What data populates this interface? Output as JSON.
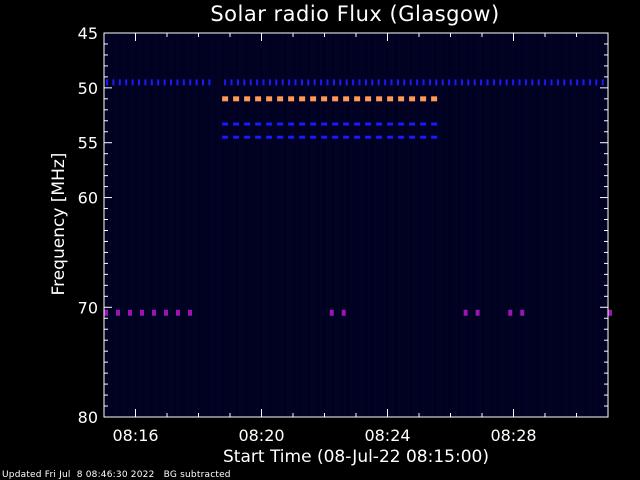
{
  "footer": "Updated Fri Jul  8 08:46:30 2022   BG subtracted",
  "chart_data": {
    "type": "heatmap",
    "title": "Solar radio Flux (Glasgow)",
    "xlabel": "Start Time (08-Jul-22 08:15:00)",
    "ylabel": "Frequency [MHz]",
    "xlim": [
      "08:15:00",
      "08:31:00"
    ],
    "ylim": [
      45,
      80
    ],
    "y_scale": "inverted",
    "x_ticks": [
      "08:16",
      "08:20",
      "08:24",
      "08:28"
    ],
    "y_ticks": [
      45,
      50,
      55,
      60,
      70,
      80
    ],
    "colors": {
      "background": "#000020",
      "low": "#1a1aff",
      "mid": "#9b14b4",
      "high": "#ff9955"
    },
    "features": [
      {
        "name": "dotted band",
        "frequency": 49.5,
        "intensity": "low",
        "segments": [
          [
            "08:15:00",
            "08:18:30"
          ],
          [
            "08:18:45",
            "08:31:00"
          ]
        ]
      },
      {
        "name": "dashed band",
        "frequency": 51.0,
        "intensity": "high",
        "segments": [
          [
            "08:18:45",
            "08:25:45"
          ]
        ]
      },
      {
        "name": "dashed band",
        "frequency": 53.3,
        "intensity": "low",
        "segments": [
          [
            "08:18:45",
            "08:25:45"
          ]
        ]
      },
      {
        "name": "dashed band",
        "frequency": 54.5,
        "intensity": "low",
        "segments": [
          [
            "08:18:45",
            "08:25:45"
          ]
        ]
      },
      {
        "name": "intermittent band",
        "frequency": 70.5,
        "intensity": "mid",
        "segments": [
          [
            "08:15:00",
            "08:18:00"
          ],
          [
            "08:22:10",
            "08:22:50"
          ],
          [
            "08:26:25",
            "08:26:50"
          ],
          [
            "08:27:50",
            "08:28:15"
          ],
          [
            "08:31:00",
            "08:31:00"
          ]
        ]
      }
    ]
  }
}
